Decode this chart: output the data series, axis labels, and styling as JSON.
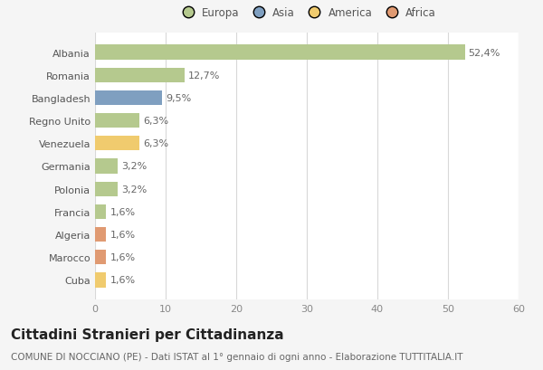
{
  "categories": [
    "Albania",
    "Romania",
    "Bangladesh",
    "Regno Unito",
    "Venezuela",
    "Germania",
    "Polonia",
    "Francia",
    "Algeria",
    "Marocco",
    "Cuba"
  ],
  "values": [
    52.4,
    12.7,
    9.5,
    6.3,
    6.3,
    3.2,
    3.2,
    1.6,
    1.6,
    1.6,
    1.6
  ],
  "labels": [
    "52,4%",
    "12,7%",
    "9,5%",
    "6,3%",
    "6,3%",
    "3,2%",
    "3,2%",
    "1,6%",
    "1,6%",
    "1,6%",
    "1,6%"
  ],
  "colors": [
    "#b5c98e",
    "#b5c98e",
    "#7f9fc0",
    "#b5c98e",
    "#f0cb6e",
    "#b5c98e",
    "#b5c98e",
    "#b5c98e",
    "#e09a72",
    "#e09a72",
    "#f0cb6e"
  ],
  "continents": [
    "Europa",
    "Europa",
    "Asia",
    "Europa",
    "America",
    "Europa",
    "Europa",
    "Europa",
    "Africa",
    "Africa",
    "America"
  ],
  "legend_labels": [
    "Europa",
    "Asia",
    "America",
    "Africa"
  ],
  "legend_colors": [
    "#b5c98e",
    "#7f9fc0",
    "#f0cb6e",
    "#e09a72"
  ],
  "xlim": [
    0,
    60
  ],
  "xticks": [
    0,
    10,
    20,
    30,
    40,
    50,
    60
  ],
  "title": "Cittadini Stranieri per Cittadinanza",
  "subtitle": "COMUNE DI NOCCIANO (PE) - Dati ISTAT al 1° gennaio di ogni anno - Elaborazione TUTTITALIA.IT",
  "background_color": "#f5f5f5",
  "bar_background": "#ffffff",
  "grid_color": "#d8d8d8",
  "title_fontsize": 11,
  "subtitle_fontsize": 7.5,
  "label_fontsize": 8,
  "tick_fontsize": 8
}
